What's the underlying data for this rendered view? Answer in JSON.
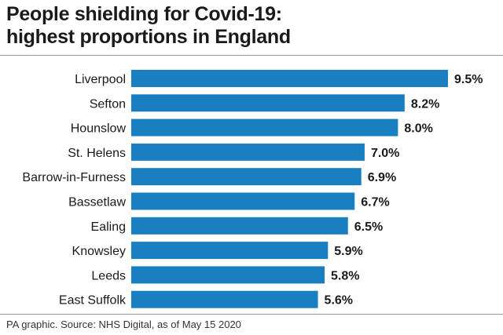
{
  "title_line1": "People shielding for Covid-19:",
  "title_line2": "highest proportions in England",
  "source": "PA graphic. Source: NHS Digital, as of May 15 2020",
  "colors": {
    "bar": "#1a7fc1",
    "text": "#1a1a1a",
    "rule": "#9a9a9a"
  },
  "chart_data": {
    "type": "bar",
    "orientation": "horizontal",
    "categories": [
      "Liverpool",
      "Sefton",
      "Hounslow",
      "St. Helens",
      "Barrow-in-Furness",
      "Bassetlaw",
      "Ealing",
      "Knowsley",
      "Leeds",
      "East Suffolk"
    ],
    "values": [
      9.5,
      8.2,
      8.0,
      7.0,
      6.9,
      6.7,
      6.5,
      5.9,
      5.8,
      5.6
    ],
    "value_labels": [
      "9.5%",
      "8.2%",
      "8.0%",
      "7.0%",
      "6.9%",
      "6.7%",
      "6.5%",
      "5.9%",
      "5.8%",
      "5.6%"
    ],
    "unit": "%",
    "xlim": [
      0,
      9.5
    ],
    "grid": false,
    "legend": "none"
  }
}
